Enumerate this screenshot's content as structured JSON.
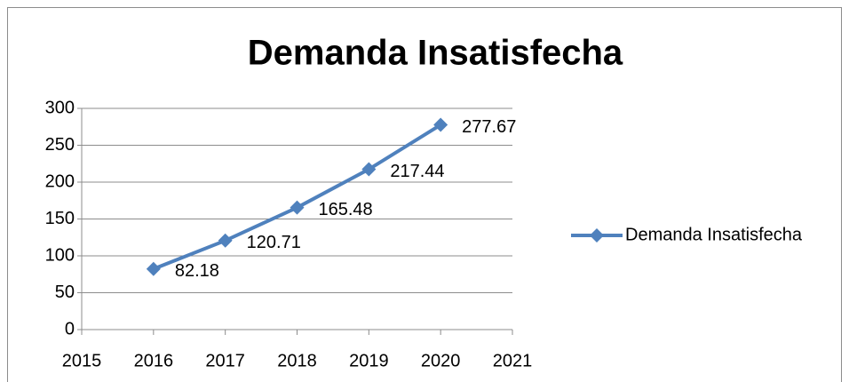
{
  "chart_data": {
    "type": "line",
    "title": "Demanda Insatisfecha",
    "x": [
      2016,
      2017,
      2018,
      2019,
      2020
    ],
    "series": [
      {
        "name": "Demanda Insatisfecha",
        "color": "#4f81bd",
        "values": [
          82.18,
          120.71,
          165.48,
          217.44,
          277.67
        ]
      }
    ],
    "xlim": [
      2015,
      2021
    ],
    "xticks": [
      2015,
      2016,
      2017,
      2018,
      2019,
      2020,
      2021
    ],
    "ylim": [
      0,
      300
    ],
    "yticks": [
      0,
      50,
      100,
      150,
      200,
      250,
      300
    ],
    "grid": true,
    "legend": "right"
  }
}
